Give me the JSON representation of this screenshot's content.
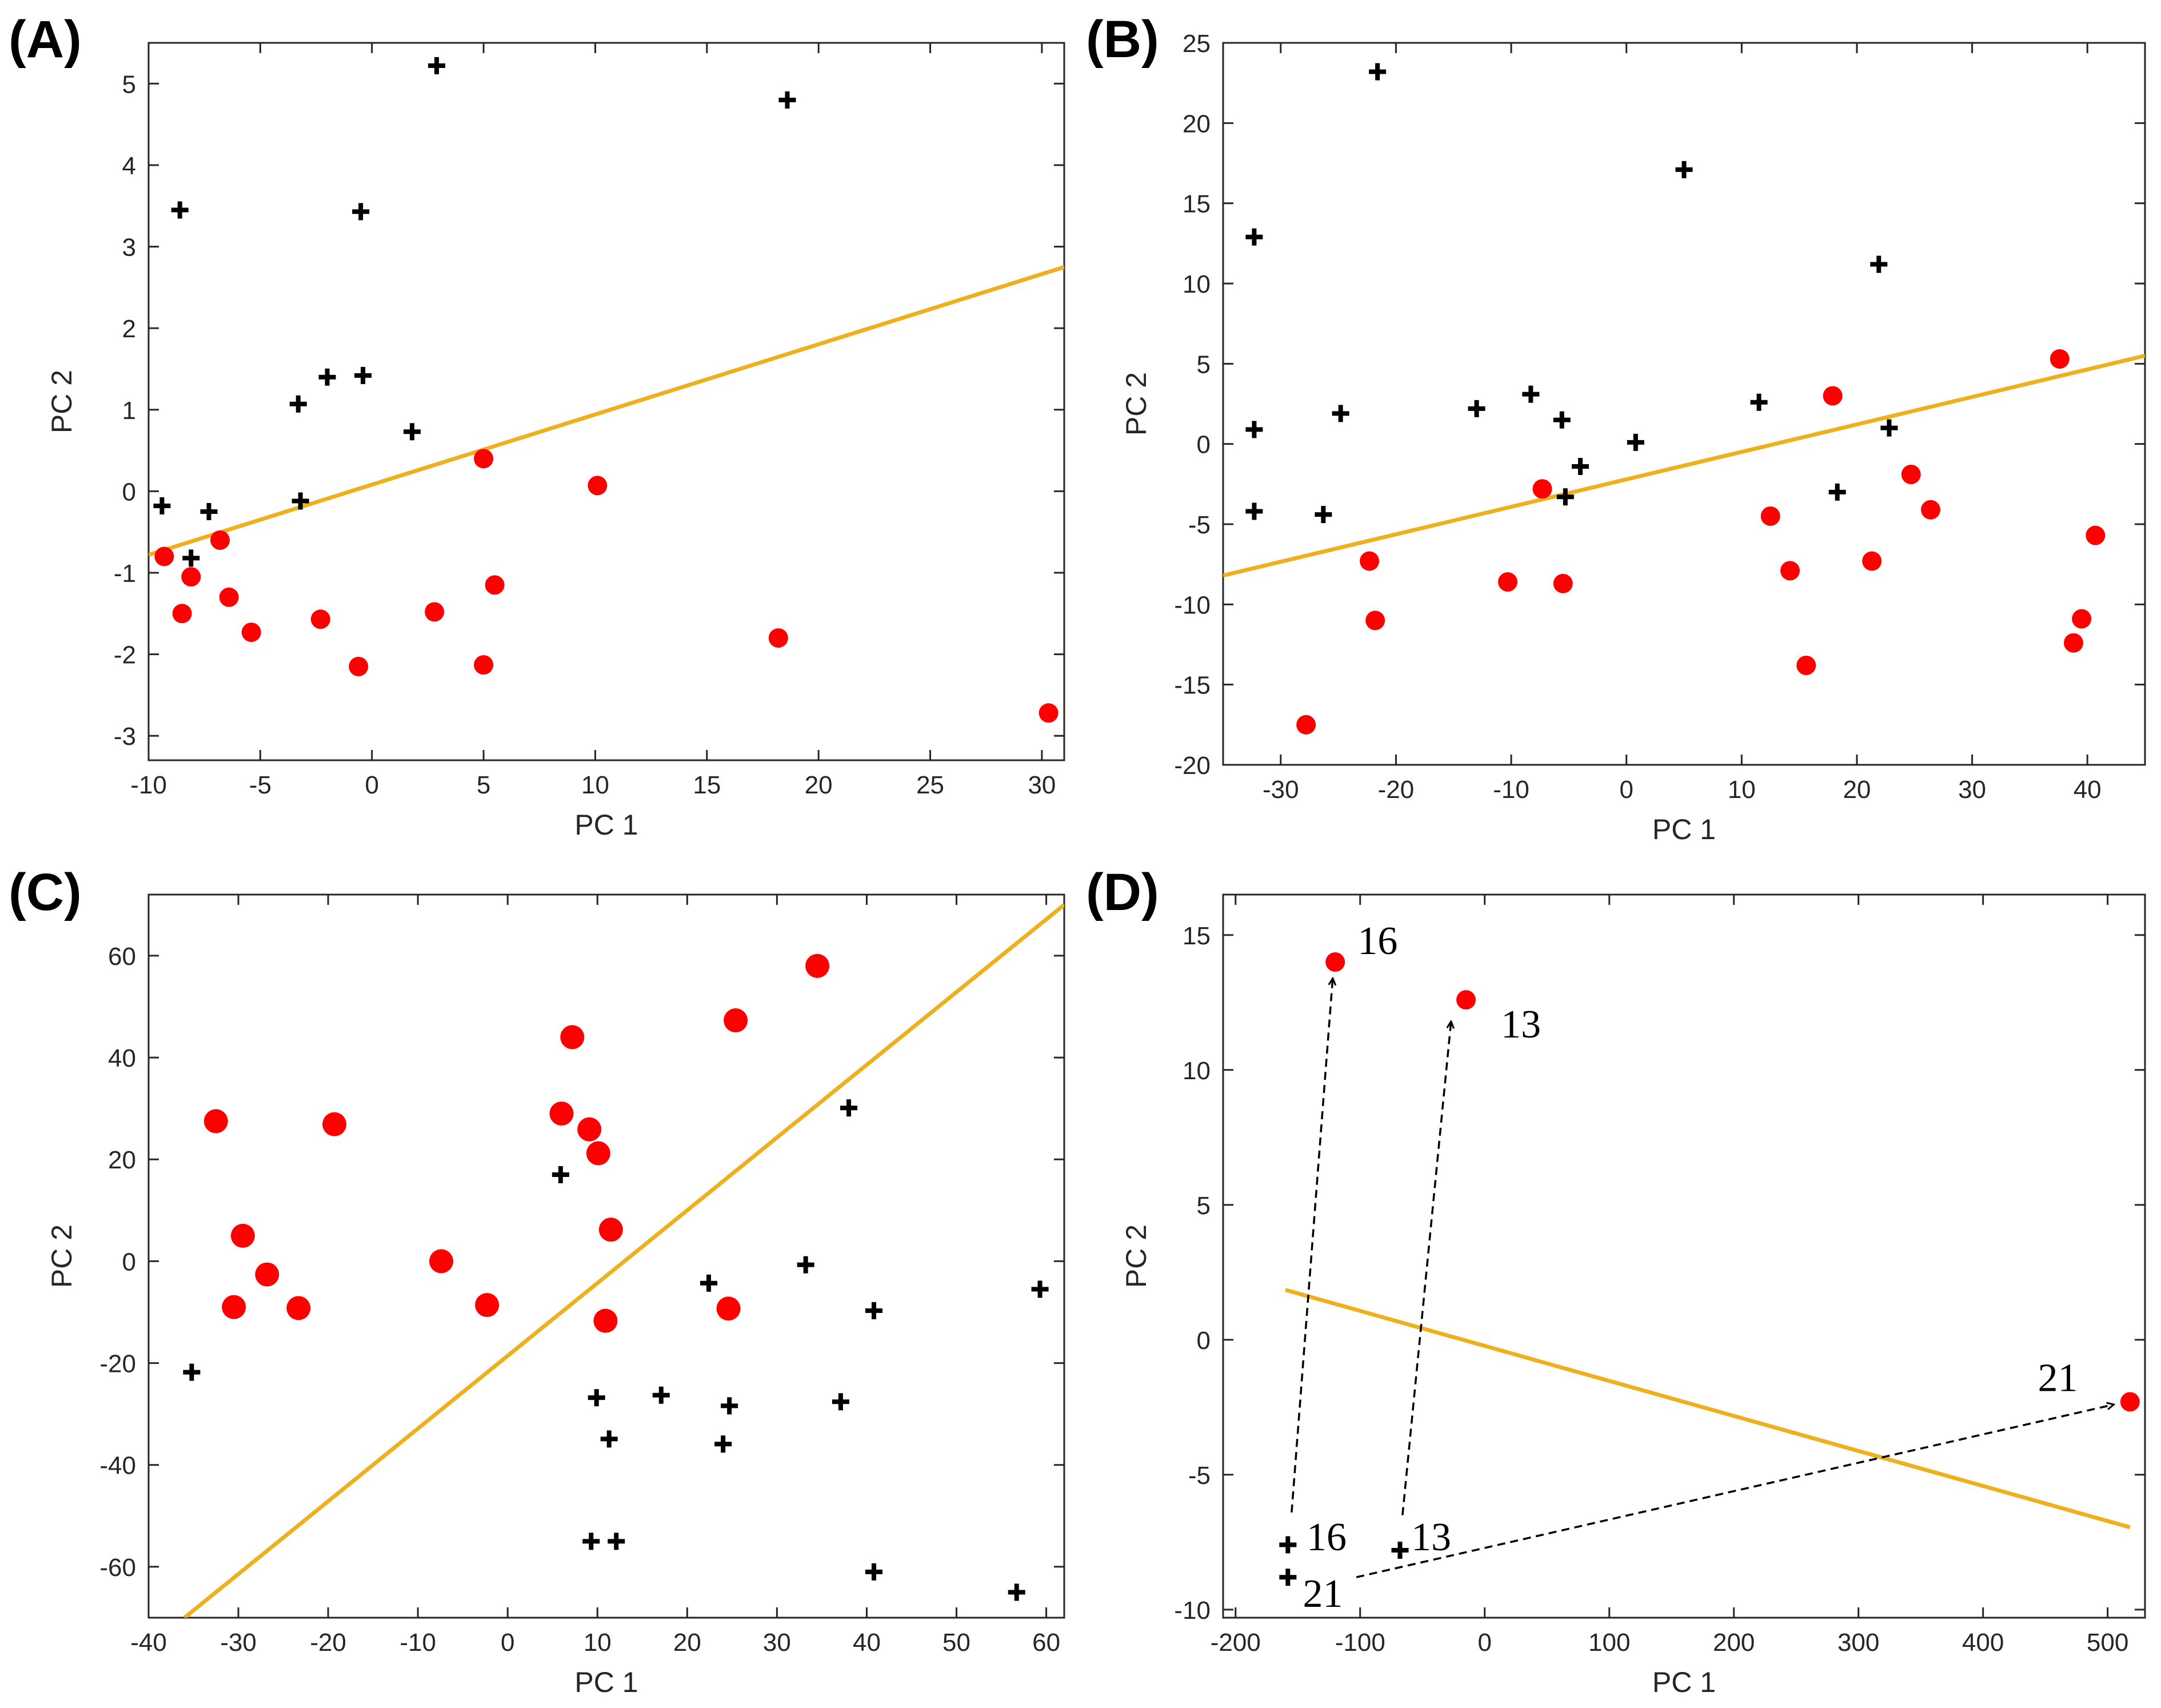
{
  "colors": {
    "class1": "#ff0000",
    "class2": "#000000",
    "boundary": "#edb120"
  },
  "chart_data": [
    {
      "panel": "(A)",
      "type": "scatter",
      "xlabel": "PC 1",
      "ylabel": "PC 2",
      "xlim": [
        -10,
        31
      ],
      "ylim": [
        -3.3,
        5.5
      ],
      "xticks": [
        -10,
        -5,
        0,
        5,
        10,
        15,
        20,
        25,
        30
      ],
      "yticks": [
        -3,
        -2,
        -1,
        0,
        1,
        2,
        3,
        4,
        5
      ],
      "boundary": [
        [
          -10,
          -0.78
        ],
        [
          31,
          2.75
        ]
      ],
      "series": [
        {
          "marker": "circle",
          "color": "#ff0000",
          "points": [
            [
              -9.3,
              -0.8
            ],
            [
              -8.5,
              -1.5
            ],
            [
              -8.1,
              -1.05
            ],
            [
              -6.8,
              -0.6
            ],
            [
              -6.4,
              -1.3
            ],
            [
              -5.4,
              -1.73
            ],
            [
              -2.3,
              -1.57
            ],
            [
              -0.6,
              -2.15
            ],
            [
              2.8,
              -1.48
            ],
            [
              5.0,
              0.4
            ],
            [
              5.0,
              -2.13
            ],
            [
              5.5,
              -1.15
            ],
            [
              10.1,
              0.07
            ],
            [
              18.2,
              -1.8
            ],
            [
              30.3,
              -2.72
            ]
          ]
        },
        {
          "marker": "plus",
          "color": "#000000",
          "points": [
            [
              -9.4,
              -0.18
            ],
            [
              -8.6,
              3.45
            ],
            [
              -8.1,
              -0.82
            ],
            [
              -7.3,
              -0.25
            ],
            [
              -3.3,
              1.07
            ],
            [
              -3.2,
              -0.12
            ],
            [
              -2.0,
              1.4
            ],
            [
              -0.5,
              3.43
            ],
            [
              -0.4,
              1.42
            ],
            [
              1.8,
              0.73
            ],
            [
              2.9,
              5.22
            ],
            [
              18.6,
              4.8
            ]
          ]
        }
      ]
    },
    {
      "panel": "(B)",
      "type": "scatter",
      "xlabel": "PC 1",
      "ylabel": "PC 2",
      "xlim": [
        -35,
        45
      ],
      "ylim": [
        -20,
        25
      ],
      "xticks": [
        -30,
        -20,
        -10,
        0,
        10,
        20,
        30,
        40
      ],
      "yticks": [
        -20,
        -15,
        -10,
        -5,
        0,
        5,
        10,
        15,
        20,
        25
      ],
      "boundary": [
        [
          -35,
          -8.2
        ],
        [
          45,
          5.5
        ]
      ],
      "series": [
        {
          "marker": "circle",
          "color": "#ff0000",
          "points": [
            [
              -27.8,
              -17.5
            ],
            [
              -22.3,
              -7.3
            ],
            [
              -21.8,
              -11
            ],
            [
              -10.3,
              -8.6
            ],
            [
              -7.3,
              -2.8
            ],
            [
              -5.5,
              -8.7
            ],
            [
              12.5,
              -4.5
            ],
            [
              14.2,
              -7.9
            ],
            [
              15.6,
              -13.8
            ],
            [
              17.9,
              3
            ],
            [
              21.3,
              -7.3
            ],
            [
              24.7,
              -1.9
            ],
            [
              26.4,
              -4.1
            ],
            [
              37.6,
              5.3
            ],
            [
              38.8,
              -12.4
            ],
            [
              39.5,
              -10.9
            ],
            [
              40.7,
              -5.7
            ]
          ]
        },
        {
          "marker": "plus",
          "color": "#000000",
          "points": [
            [
              -32.3,
              12.9
            ],
            [
              -32.3,
              0.9
            ],
            [
              -32.3,
              -4.2
            ],
            [
              -26.3,
              -4.4
            ],
            [
              -24.8,
              1.9
            ],
            [
              -21.6,
              23.2
            ],
            [
              -13.0,
              2.2
            ],
            [
              -8.3,
              3.1
            ],
            [
              -5.6,
              1.5
            ],
            [
              -5.3,
              -3.3
            ],
            [
              -4.0,
              -1.4
            ],
            [
              0.8,
              0.1
            ],
            [
              5.0,
              17.1
            ],
            [
              11.5,
              2.6
            ],
            [
              18.3,
              -3
            ],
            [
              21.9,
              11.2
            ],
            [
              22.8,
              1
            ]
          ]
        }
      ]
    },
    {
      "panel": "(C)",
      "type": "scatter",
      "xlabel": "PC 1",
      "ylabel": "PC 2",
      "xlim": [
        -40,
        62
      ],
      "ylim": [
        -70,
        72
      ],
      "xticks": [
        -40,
        -30,
        -20,
        -10,
        0,
        10,
        20,
        30,
        40,
        50,
        60
      ],
      "yticks": [
        -60,
        -40,
        -20,
        0,
        20,
        40,
        60
      ],
      "boundary": [
        [
          -36,
          -70
        ],
        [
          62,
          70
        ]
      ],
      "series": [
        {
          "marker": "circle",
          "color": "#ff0000",
          "points": [
            [
              -32.5,
              27.5
            ],
            [
              -29.5,
              5
            ],
            [
              -30.5,
              -9
            ],
            [
              -26.8,
              -2.6
            ],
            [
              -23.3,
              -9.2
            ],
            [
              -19.3,
              26.9
            ],
            [
              -7.4,
              0
            ],
            [
              -2.3,
              -8.6
            ],
            [
              6,
              29
            ],
            [
              7.2,
              44
            ],
            [
              9.1,
              25.9
            ],
            [
              10.1,
              21.2
            ],
            [
              10.9,
              -11.7
            ],
            [
              11.5,
              6.2
            ],
            [
              24.6,
              -9.3
            ],
            [
              25.4,
              47.3
            ],
            [
              34.5,
              58
            ]
          ]
        },
        {
          "marker": "plus",
          "color": "#000000",
          "points": [
            [
              -35.2,
              -21.8
            ],
            [
              5.9,
              17
            ],
            [
              9.3,
              -55
            ],
            [
              9.9,
              -26.8
            ],
            [
              11.3,
              -34.9
            ],
            [
              12.1,
              -55
            ],
            [
              17.1,
              -26.3
            ],
            [
              22.4,
              -4.3
            ],
            [
              24.0,
              -35.9
            ],
            [
              24.7,
              -28.4
            ],
            [
              33.2,
              -0.7
            ],
            [
              37.1,
              -27.6
            ],
            [
              38.0,
              30.1
            ],
            [
              40.8,
              -61
            ],
            [
              40.8,
              -9.7
            ],
            [
              56.7,
              -65
            ],
            [
              59.3,
              -5.5
            ]
          ]
        }
      ]
    },
    {
      "panel": "(D)",
      "type": "scatter",
      "xlabel": "PC 1",
      "ylabel": "PC 2",
      "xlim": [
        -210,
        530
      ],
      "ylim": [
        -10.3,
        16.5
      ],
      "xticks": [
        -200,
        -100,
        0,
        100,
        200,
        300,
        400,
        500
      ],
      "yticks": [
        -10,
        -5,
        0,
        5,
        10,
        15
      ],
      "boundary": [
        [
          -160,
          1.85
        ],
        [
          518,
          -6.95
        ]
      ],
      "series": [
        {
          "marker": "circle",
          "color": "#ff0000",
          "points": [
            [
              -120,
              14
            ],
            [
              -15,
              12.6
            ],
            [
              518,
              -2.3
            ]
          ]
        },
        {
          "marker": "plus",
          "color": "#000000",
          "points": [
            [
              -158,
              -7.6
            ],
            [
              -158,
              -8.8
            ],
            [
              -68,
              -7.8
            ]
          ]
        }
      ],
      "arrows": [
        [
          [
            -155,
            -6.4
          ],
          [
            -122,
            13.4
          ]
        ],
        [
          [
            -66,
            -6.5
          ],
          [
            -27,
            11.8
          ]
        ],
        [
          [
            -103,
            -8.8
          ],
          [
            505,
            -2.4
          ]
        ]
      ],
      "annotations": [
        {
          "text": "16",
          "x": -102,
          "y": 14.3
        },
        {
          "text": "13",
          "x": 13,
          "y": 11.2
        },
        {
          "text": "21",
          "x": 444,
          "y": -1.9
        },
        {
          "text": "16",
          "x": -143,
          "y": -7.8
        },
        {
          "text": "13",
          "x": -59,
          "y": -7.8
        },
        {
          "text": "21",
          "x": -146,
          "y": -9.9
        }
      ]
    }
  ]
}
